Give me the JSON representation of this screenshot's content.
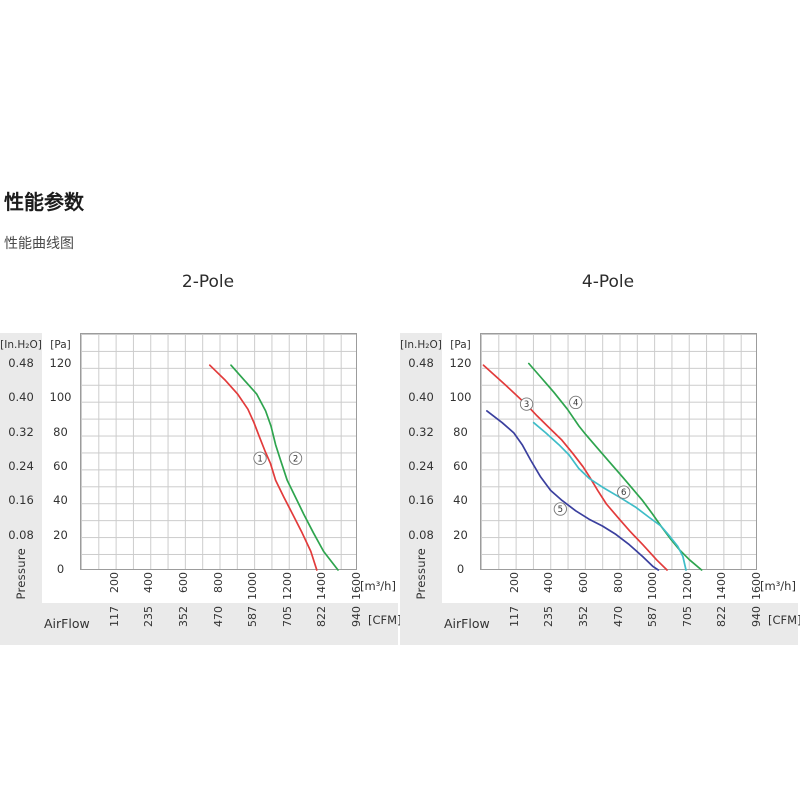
{
  "page": {
    "heading": "性能参数",
    "subheading": "性能曲线图"
  },
  "chart_data": [
    {
      "type": "line",
      "title": "2-Pole",
      "x_range": [
        0,
        1600
      ],
      "y_range": [
        0,
        140
      ],
      "grid": "on",
      "pressure_axis": {
        "unit_inh2o": "[In.H₂O]",
        "unit_pa": "[Pa]",
        "inh2o_values": [
          "0.48",
          "0.40",
          "0.32",
          "0.24",
          "0.16",
          "0.08"
        ],
        "pa_values": [
          "120",
          "100",
          "80",
          "60",
          "40",
          "20",
          "0"
        ],
        "axis_label": "Pressure"
      },
      "flow_axis": {
        "m3h_values": [
          "200",
          "400",
          "600",
          "800",
          "1000",
          "1200",
          "1400",
          "1600"
        ],
        "m3h_unit": "[m³/h]",
        "airflow_label": "AirFlow",
        "cfm_values": [
          "117",
          "235",
          "352",
          "470",
          "587",
          "705",
          "822",
          "940"
        ],
        "cfm_unit": "[CFM]"
      },
      "series": [
        {
          "name": "curve-1",
          "color": "#e23b3b",
          "points": [
            [
              750,
              121
            ],
            [
              840,
              112
            ],
            [
              910,
              104
            ],
            [
              970,
              95
            ],
            [
              1005,
              87
            ],
            [
              1035,
              79
            ],
            [
              1070,
              70
            ],
            [
              1100,
              63
            ],
            [
              1130,
              53
            ],
            [
              1178,
              43
            ],
            [
              1228,
              33
            ],
            [
              1283,
              22
            ],
            [
              1333,
              11
            ],
            [
              1368,
              0
            ]
          ]
        },
        {
          "name": "curve-2",
          "color": "#2ea44e",
          "points": [
            [
              872,
              121
            ],
            [
              950,
              112
            ],
            [
              1020,
              104
            ],
            [
              1072,
              94
            ],
            [
              1103,
              85
            ],
            [
              1130,
              74
            ],
            [
              1158,
              65
            ],
            [
              1197,
              53
            ],
            [
              1245,
              43
            ],
            [
              1292,
              33
            ],
            [
              1348,
              22
            ],
            [
              1407,
              11
            ],
            [
              1452,
              5
            ],
            [
              1490,
              0
            ]
          ]
        }
      ],
      "point_labels": [
        {
          "n": "1",
          "x": 1040,
          "y": 66
        },
        {
          "n": "2",
          "x": 1245,
          "y": 66
        }
      ]
    },
    {
      "type": "line",
      "title": "4-Pole",
      "x_range": [
        0,
        1600
      ],
      "y_range": [
        0,
        140
      ],
      "grid": "on",
      "pressure_axis": {
        "unit_inh2o": "[In.H₂O]",
        "unit_pa": "[Pa]",
        "inh2o_values": [
          "0.48",
          "0.40",
          "0.32",
          "0.24",
          "0.16",
          "0.08"
        ],
        "pa_values": [
          "120",
          "100",
          "80",
          "60",
          "40",
          "20",
          "0"
        ],
        "axis_label": "Pressure"
      },
      "flow_axis": {
        "m3h_values": [
          "200",
          "400",
          "600",
          "800",
          "1000",
          "1200",
          "1400",
          "1600"
        ],
        "m3h_unit": "[m³/h]",
        "airflow_label": "AirFlow",
        "cfm_values": [
          "117",
          "235",
          "352",
          "470",
          "587",
          "705",
          "822",
          "940"
        ],
        "cfm_unit": "[CFM]"
      },
      "series": [
        {
          "name": "curve-3",
          "color": "#e23b3b",
          "points": [
            [
              20,
              121
            ],
            [
              150,
              109
            ],
            [
              265,
              98
            ],
            [
              330,
              91
            ],
            [
              390,
              85
            ],
            [
              470,
              77
            ],
            [
              535,
              69
            ],
            [
              595,
              61
            ],
            [
              633,
              55
            ],
            [
              680,
              47
            ],
            [
              730,
              39
            ],
            [
              805,
              30
            ],
            [
              865,
              23
            ],
            [
              940,
              15
            ],
            [
              1020,
              6
            ],
            [
              1080,
              0
            ]
          ]
        },
        {
          "name": "curve-4",
          "color": "#2ea44e",
          "points": [
            [
              282,
              122
            ],
            [
              350,
              114
            ],
            [
              427,
              105
            ],
            [
              505,
              95
            ],
            [
              572,
              85
            ],
            [
              611,
              80
            ],
            [
              678,
              72
            ],
            [
              746,
              64
            ],
            [
              823,
              55
            ],
            [
              881,
              48
            ],
            [
              939,
              41
            ],
            [
              997,
              33
            ],
            [
              1045,
              26
            ],
            [
              1103,
              18
            ],
            [
              1152,
              12
            ],
            [
              1210,
              6
            ],
            [
              1280,
              0
            ]
          ]
        },
        {
          "name": "curve-5",
          "color": "#3a3f9e",
          "points": [
            [
              40,
              94
            ],
            [
              128,
              87
            ],
            [
              195,
              81
            ],
            [
              244,
              74
            ],
            [
              292,
              65
            ],
            [
              350,
              55
            ],
            [
              408,
              47
            ],
            [
              475,
              41
            ],
            [
              553,
              35
            ],
            [
              630,
              30
            ],
            [
              707,
              26
            ],
            [
              785,
              21
            ],
            [
              862,
              15
            ],
            [
              939,
              8
            ],
            [
              1000,
              2
            ],
            [
              1030,
              0
            ]
          ]
        },
        {
          "name": "curve-6",
          "color": "#3fbdc8",
          "points": [
            [
              310,
              87
            ],
            [
              380,
              81
            ],
            [
              456,
              74
            ],
            [
              514,
              68
            ],
            [
              570,
              60
            ],
            [
              632,
              54
            ],
            [
              707,
              49
            ],
            [
              806,
              43
            ],
            [
              901,
              37
            ],
            [
              978,
              31
            ],
            [
              1045,
              26
            ],
            [
              1095,
              20
            ],
            [
              1142,
              14
            ],
            [
              1172,
              8
            ],
            [
              1190,
              0
            ]
          ]
        }
      ],
      "point_labels": [
        {
          "n": "3",
          "x": 269,
          "y": 98
        },
        {
          "n": "4",
          "x": 553,
          "y": 99
        },
        {
          "n": "5",
          "x": 464,
          "y": 36
        },
        {
          "n": "6",
          "x": 830,
          "y": 46
        }
      ]
    }
  ]
}
